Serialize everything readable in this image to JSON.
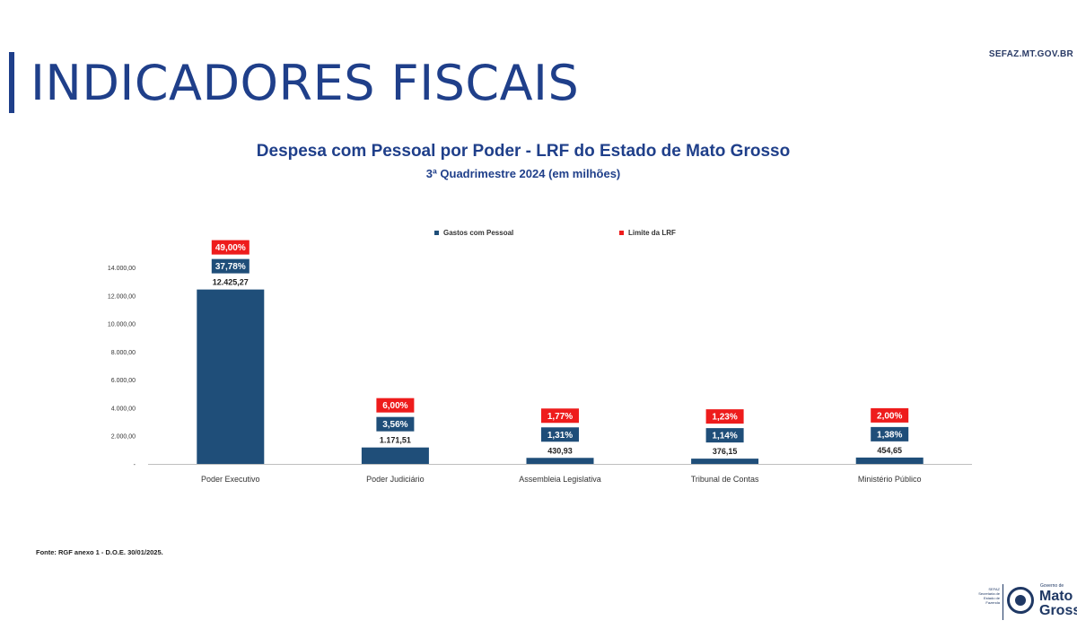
{
  "header": {
    "title": "INDICADORES FISCAIS",
    "site": "SEFAZ.MT.GOV.BR"
  },
  "chart_data": {
    "type": "bar",
    "title": "Despesa com Pessoal por Poder - LRF do Estado de Mato Grosso",
    "subtitle": "3ª Quadrimestre 2024 (em milhões)",
    "categories": [
      "Poder Executivo",
      "Poder Judiciário",
      "Assembleia Legislativa",
      "Tribunal de Contas",
      "Ministério Público"
    ],
    "series": [
      {
        "name": "Gastos com Pessoal",
        "values": [
          12425.27,
          1171.51,
          430.93,
          376.15,
          454.65
        ],
        "value_labels": [
          "12.425,27",
          "1.171,51",
          "430,93",
          "376,15",
          "454,65"
        ],
        "percent_labels": [
          "37,78%",
          "3,56%",
          "1,31%",
          "1,14%",
          "1,38%"
        ],
        "color": "#1f4e79"
      },
      {
        "name": "Limite da LRF",
        "percent_labels": [
          "49,00%",
          "6,00%",
          "1,77%",
          "1,23%",
          "2,00%"
        ],
        "color": "#ee1c1c"
      }
    ],
    "yticks": [
      0,
      2000,
      4000,
      6000,
      8000,
      10000,
      12000,
      14000
    ],
    "ytick_labels": [
      "-",
      "2.000,00",
      "4.000,00",
      "6.000,00",
      "8.000,00",
      "10.000,00",
      "12.000,00",
      "14.000,00"
    ],
    "ylim": [
      0,
      14000
    ],
    "grid": false,
    "legend_position": "top-center"
  },
  "footer": {
    "source": "Fonte: RGF anexo 1 - D.O.E. 30/01/2025.",
    "logo_small": "SEFAZ Secretaria de Estado de Fazenda",
    "logo_gov": "Governo de",
    "logo_name_1": "Mato",
    "logo_name_2": "Grosso"
  }
}
